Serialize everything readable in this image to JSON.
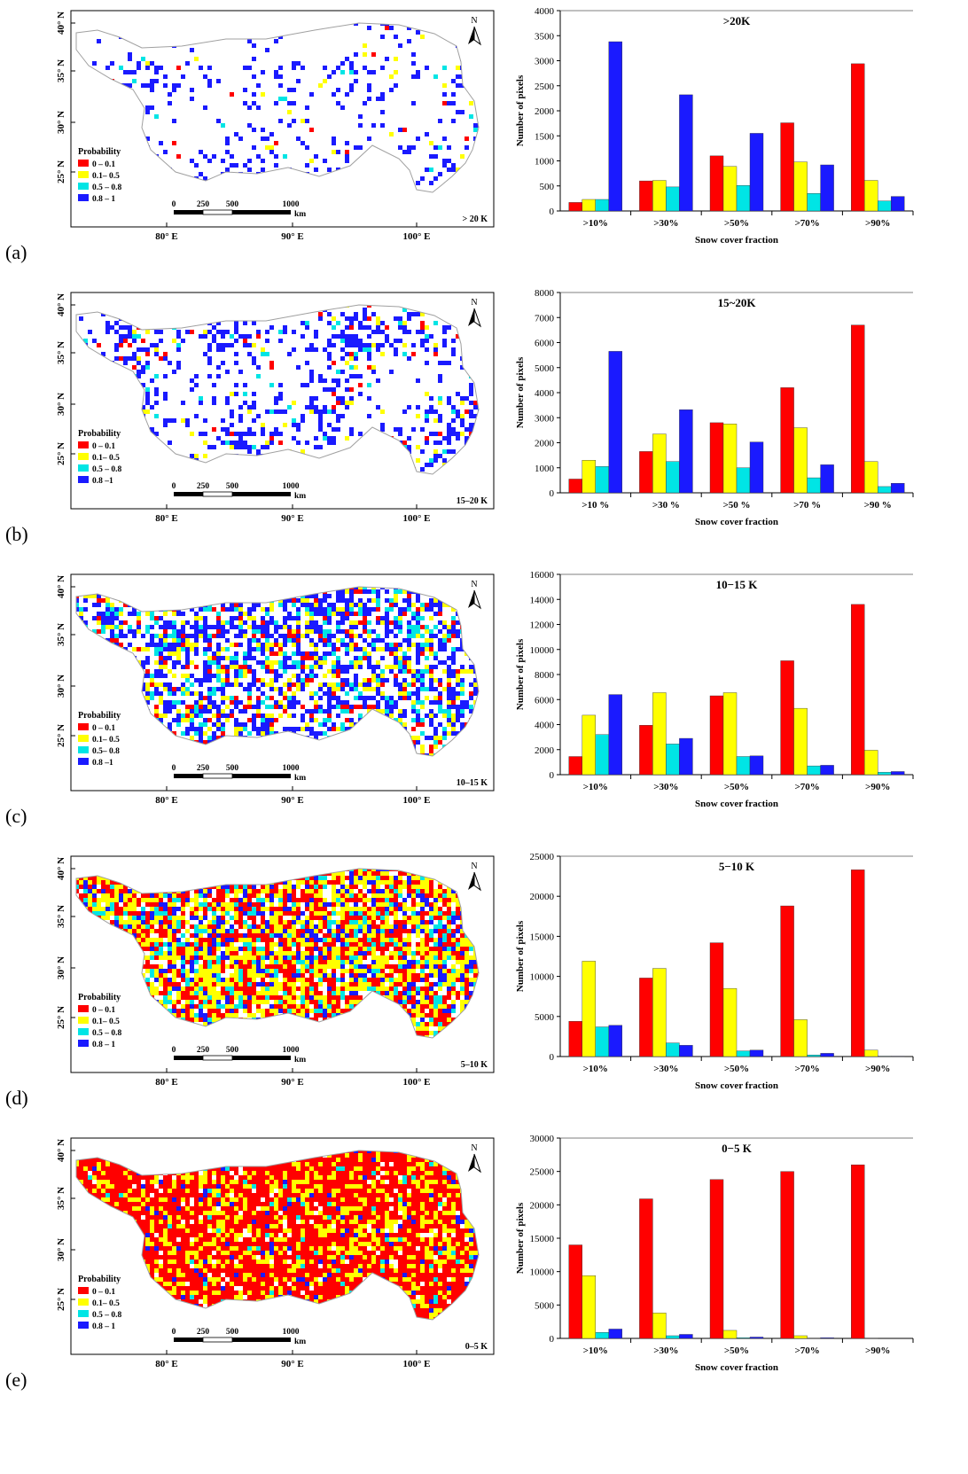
{
  "colors": {
    "red": "#ff0000",
    "yellow": "#ffff00",
    "cyan": "#00e5e5",
    "blue": "#1a1aff",
    "map_outline": "#a0a0a0",
    "axis": "#000000"
  },
  "icons": {
    "north_arrow": "north-arrow-icon",
    "scale_bar": "scale-bar"
  },
  "map_common": {
    "lat_labels": [
      "40° N",
      "35° N",
      "30° N",
      "25° N"
    ],
    "lon_labels": [
      "80° E",
      "90° E",
      "100° E"
    ],
    "north_label": "N",
    "legend_title": "Probability",
    "scale_labels": [
      "0",
      "250",
      "500",
      "1000"
    ],
    "scale_unit": "km"
  },
  "panels": [
    {
      "label": "(a)",
      "map_tag": "> 20 K",
      "legend": [
        "0 – 0.1",
        "0.1– 0.5",
        "0.5 – 0.8",
        "0.8 – 1"
      ],
      "coverage": {
        "red": 0.01,
        "yellow": 0.01,
        "cyan": 0.01,
        "blue": 0.16
      }
    },
    {
      "label": "(b)",
      "map_tag": "15–20 K",
      "legend": [
        "0 – 0.1",
        "0.1– 0.5",
        "0.5 – 0.8",
        "0.8 –1"
      ],
      "coverage": {
        "red": 0.03,
        "yellow": 0.03,
        "cyan": 0.03,
        "blue": 0.3
      }
    },
    {
      "label": "(c)",
      "map_tag": "10–15 K",
      "legend": [
        "0 – 0.1",
        "0.1– 0.5",
        "0.5– 0.8",
        "0.8 –1"
      ],
      "coverage": {
        "red": 0.07,
        "yellow": 0.12,
        "cyan": 0.1,
        "blue": 0.32
      }
    },
    {
      "label": "(d)",
      "map_tag": "5–10 K",
      "legend": [
        "0 – 0.1",
        "0.1– 0.5",
        "0.5 – 0.8",
        "0.8 – 1"
      ],
      "coverage": {
        "red": 0.3,
        "yellow": 0.34,
        "cyan": 0.1,
        "blue": 0.14
      }
    },
    {
      "label": "(e)",
      "map_tag": "0–5 K",
      "legend": [
        "0 – 0.1",
        "0.1– 0.5",
        "0.5 – 0.8",
        "0.8 – 1"
      ],
      "coverage": {
        "red": 0.62,
        "yellow": 0.26,
        "cyan": 0.03,
        "blue": 0.04
      }
    }
  ],
  "chart_data": [
    {
      "type": "bar",
      "title": ">20K",
      "xlabel": "Snow cover fraction",
      "ylabel": "Number of pixels",
      "categories": [
        ">10%",
        ">30%",
        ">50%",
        ">70%",
        ">90%"
      ],
      "ylim": [
        0,
        4000
      ],
      "yticks": [
        0,
        500,
        1000,
        1500,
        2000,
        2500,
        3000,
        3500,
        4000
      ],
      "ytick_labels": [
        "0",
        "500",
        "1000",
        "1500",
        "2000",
        "2500",
        "3000",
        "3500",
        "4000"
      ],
      "series": [
        {
          "color": "#ff0000",
          "values": [
            170,
            600,
            1100,
            1760,
            2940
          ]
        },
        {
          "color": "#ffff00",
          "values": [
            230,
            610,
            890,
            980,
            610
          ]
        },
        {
          "color": "#00e5e5",
          "values": [
            230,
            480,
            510,
            350,
            200
          ]
        },
        {
          "color": "#1a1aff",
          "values": [
            3380,
            2320,
            1550,
            920,
            290
          ]
        }
      ]
    },
    {
      "type": "bar",
      "title": "15~20K",
      "xlabel": "Snow cover fraction",
      "ylabel": "Number of pixels",
      "categories": [
        ">10 %",
        ">30 %",
        ">50 %",
        ">70 %",
        ">90 %"
      ],
      "ylim": [
        0,
        8000
      ],
      "yticks": [
        0,
        1000,
        2000,
        3000,
        4000,
        5000,
        6000,
        7000,
        8000
      ],
      "ytick_labels": [
        "0",
        "1000",
        "2000",
        "3000",
        "4000",
        "5000",
        "6000",
        "7000",
        "8000"
      ],
      "series": [
        {
          "color": "#ff0000",
          "values": [
            550,
            1650,
            2800,
            4200,
            6700
          ]
        },
        {
          "color": "#ffff00",
          "values": [
            1300,
            2350,
            2750,
            2600,
            1250
          ]
        },
        {
          "color": "#00e5e5",
          "values": [
            1050,
            1250,
            1000,
            600,
            250
          ]
        },
        {
          "color": "#1a1aff",
          "values": [
            5650,
            3320,
            2030,
            1120,
            380
          ]
        }
      ]
    },
    {
      "type": "bar",
      "title": "10−15 K",
      "xlabel": "Snow cover fraction",
      "ylabel": "Number of pixels",
      "categories": [
        ">10%",
        ">30%",
        ">50%",
        ">70%",
        ">90%"
      ],
      "ylim": [
        0,
        16000
      ],
      "yticks": [
        0,
        2000,
        4000,
        6000,
        8000,
        10000,
        12000,
        14000,
        16000
      ],
      "ytick_labels": [
        "0",
        "2000",
        "4000",
        "6000",
        "8000",
        "10000",
        "12000",
        "14000",
        "16000"
      ],
      "series": [
        {
          "color": "#ff0000",
          "values": [
            1450,
            3950,
            6300,
            9100,
            13600
          ]
        },
        {
          "color": "#ffff00",
          "values": [
            4750,
            6550,
            6550,
            5300,
            1950
          ]
        },
        {
          "color": "#00e5e5",
          "values": [
            3200,
            2450,
            1450,
            700,
            200
          ]
        },
        {
          "color": "#1a1aff",
          "values": [
            6400,
            2900,
            1500,
            750,
            250
          ]
        }
      ]
    },
    {
      "type": "bar",
      "title": "5−10 K",
      "xlabel": "Snow cover fraction",
      "ylabel": "Number of pixels",
      "categories": [
        ">10%",
        ">30%",
        ">50%",
        ">70%",
        ">90%"
      ],
      "ylim": [
        0,
        25000
      ],
      "yticks": [
        0,
        5000,
        10000,
        15000,
        20000,
        25000
      ],
      "ytick_labels": [
        "0",
        "5000",
        "10000",
        "15000",
        "20000",
        "25000"
      ],
      "series": [
        {
          "color": "#ff0000",
          "values": [
            4400,
            9800,
            14200,
            18800,
            23300
          ]
        },
        {
          "color": "#ffff00",
          "values": [
            11900,
            11000,
            8500,
            4600,
            800
          ]
        },
        {
          "color": "#00e5e5",
          "values": [
            3700,
            1700,
            700,
            200,
            50
          ]
        },
        {
          "color": "#1a1aff",
          "values": [
            3900,
            1400,
            800,
            400,
            50
          ]
        }
      ]
    },
    {
      "type": "bar",
      "title": "0−5 K",
      "xlabel": "Snow cover fraction",
      "ylabel": "Number of pixels",
      "categories": [
        ">10%",
        ">30%",
        ">50%",
        ">70%",
        ">90%"
      ],
      "ylim": [
        0,
        30000
      ],
      "yticks": [
        0,
        5000,
        10000,
        15000,
        20000,
        25000,
        30000
      ],
      "ytick_labels": [
        "0",
        "5000",
        "10000",
        "15000",
        "20000",
        "25000",
        "30000"
      ],
      "series": [
        {
          "color": "#ff0000",
          "values": [
            14000,
            20900,
            23800,
            25000,
            26000
          ]
        },
        {
          "color": "#ffff00",
          "values": [
            9400,
            3800,
            1200,
            400,
            50
          ]
        },
        {
          "color": "#00e5e5",
          "values": [
            900,
            400,
            100,
            50,
            0
          ]
        },
        {
          "color": "#1a1aff",
          "values": [
            1400,
            600,
            200,
            100,
            0
          ]
        }
      ]
    }
  ]
}
